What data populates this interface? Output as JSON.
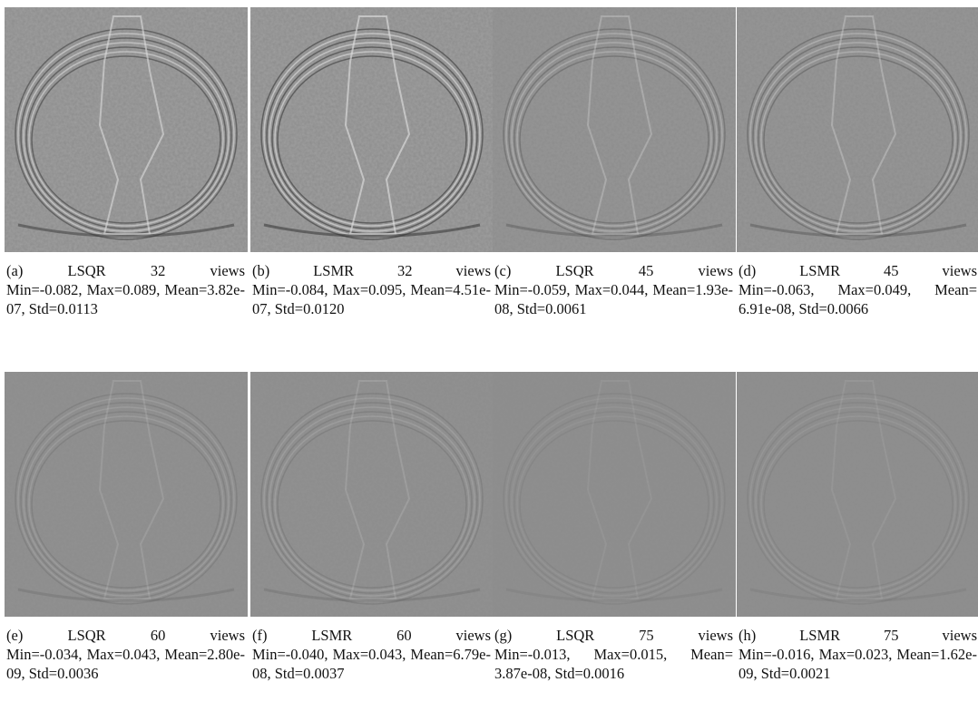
{
  "panels": [
    {
      "label": "(a)",
      "title": "LSQR 32 views",
      "stats": "Min=-0.082, Max=0.089, Mean=3.82e-07, Std=0.0113"
    },
    {
      "label": "(b)",
      "title": "LSMR 32 views",
      "stats": "Min=-0.084, Max=0.095, Mean=4.51e-07, Std=0.0120"
    },
    {
      "label": "(c)",
      "title": "LSQR 45 views",
      "stats": "Min=-0.059, Max=0.044, Mean=1.93e-08, Std=0.0061"
    },
    {
      "label": "(d)",
      "title": "LSMR 45 views",
      "stats": "Min=-0.063, Max=0.049, Mean= 6.91e-08, Std=0.0066"
    },
    {
      "label": "(e)",
      "title": "LSQR 60 views",
      "stats": "Min=-0.034, Max=0.043, Mean=2.80e-09, Std=0.0036"
    },
    {
      "label": "(f)",
      "title": "LSMR 60 views",
      "stats": "Min=-0.040, Max=0.043, Mean=6.79e-08, Std=0.0037"
    },
    {
      "label": "(g)",
      "title": "LSQR 75 views",
      "stats": "Min=-0.013, Max=0.015, Mean= 3.87e-08, Std=0.0016"
    },
    {
      "label": "(h)",
      "title": "LSMR 75 views",
      "stats": "Min=-0.016, Max=0.023, Mean=1.62e-09, Std=0.0021"
    }
  ]
}
